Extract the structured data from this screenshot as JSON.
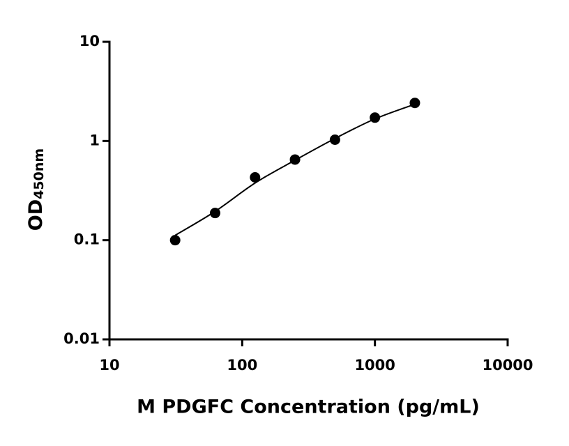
{
  "chart_data": {
    "type": "scatter",
    "x_label": "M PDGFC Concentration (pg/mL)",
    "y_label": "OD",
    "y_label_sub": "450nm",
    "x": [
      31.25,
      62.5,
      125,
      250,
      500,
      1000,
      2000
    ],
    "series": [
      {
        "color": "#000000",
        "values": [
          0.1,
          0.188,
          0.43,
          0.65,
          1.03,
          1.72,
          2.42
        ]
      }
    ],
    "fit": {
      "color": "#000000",
      "x": [
        31.25,
        62.5,
        125,
        250,
        500,
        1000,
        2000
      ],
      "values": [
        0.112,
        0.195,
        0.377,
        0.64,
        1.06,
        1.67,
        2.35
      ]
    },
    "x_log": true,
    "y_log": true,
    "xlim": [
      10,
      10000
    ],
    "xticks": [
      10,
      100,
      1000,
      10000
    ],
    "ylim": [
      0.01,
      10
    ],
    "yticks": [
      0.01,
      0.1,
      1,
      10
    ]
  }
}
